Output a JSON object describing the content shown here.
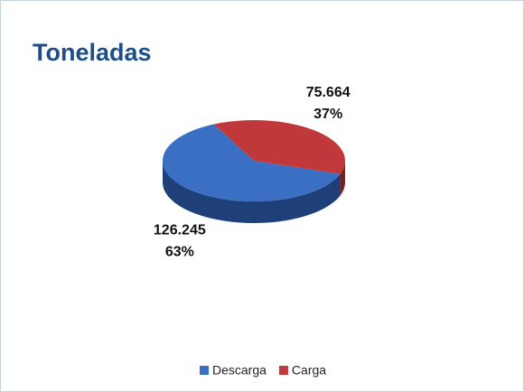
{
  "chart_data": {
    "type": "pie3d",
    "title": "Toneladas",
    "categories": [
      "Descarga",
      "Carga"
    ],
    "values": [
      126245,
      75664
    ],
    "value_labels": [
      "126.245",
      "75.664"
    ],
    "percentages": [
      63,
      37
    ],
    "percentage_labels": [
      "63%",
      "37%"
    ],
    "colors": [
      "#3a6fc4",
      "#c0383a"
    ],
    "side_colors": [
      "#1e3f78",
      "#7a1f20"
    ],
    "legend": "bottom"
  }
}
